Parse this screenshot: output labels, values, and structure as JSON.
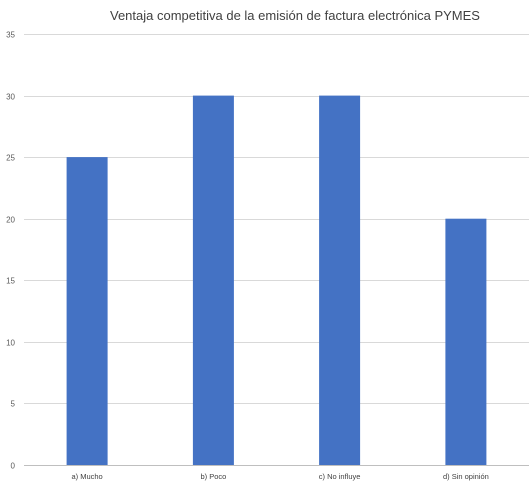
{
  "chart_data": {
    "type": "bar",
    "title": "Ventaja competitiva de la emisión de factura electrónica PYMES",
    "categories": [
      "a) Mucho",
      "b) Poco",
      "c) No influye",
      "d) Sin opinión"
    ],
    "series": [
      {
        "values": [
          25,
          30,
          30,
          20
        ]
      }
    ],
    "ylim": [
      0,
      35
    ],
    "yticks": [
      0,
      5,
      10,
      15,
      20,
      25,
      30,
      35
    ],
    "grid": true,
    "legend": "none",
    "bar_color": "#4472C4"
  }
}
